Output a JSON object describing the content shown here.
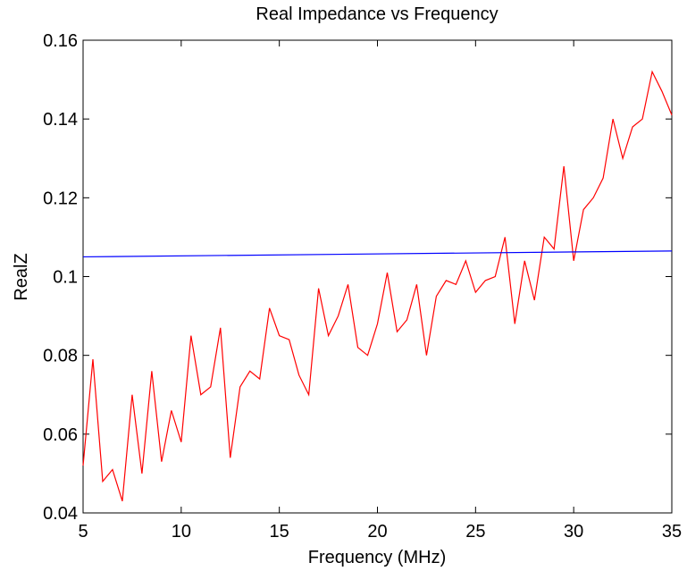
{
  "chart_data": {
    "type": "line",
    "title": "Real Impedance vs Frequency",
    "x_label": "Frequency (MHz)",
    "y_label": "RealZ",
    "xlim": [
      5,
      35
    ],
    "xticks": [
      5,
      10,
      15,
      20,
      25,
      30,
      35
    ],
    "ylim": [
      0.04,
      0.16
    ],
    "yticks": [
      0.04,
      0.06,
      0.08,
      0.1,
      0.12,
      0.14,
      0.16
    ],
    "grid": false,
    "series": [
      {
        "color": "#ff0000",
        "x": [
          5,
          5.5,
          6,
          6.5,
          7,
          7.5,
          8,
          8.5,
          9,
          9.5,
          10,
          10.5,
          11,
          11.5,
          12,
          12.5,
          13,
          13.5,
          14,
          14.5,
          15,
          15.5,
          16,
          16.5,
          17,
          17.5,
          18,
          18.5,
          19,
          19.5,
          20,
          20.5,
          21,
          21.5,
          22,
          22.5,
          23,
          23.5,
          24,
          24.5,
          25,
          25.5,
          26,
          26.5,
          27,
          27.5,
          28,
          28.5,
          29,
          29.5,
          30,
          30.5,
          31,
          31.5,
          32,
          32.5,
          33,
          33.5,
          34,
          34.5,
          35
        ],
        "values": [
          0.052,
          0.079,
          0.048,
          0.051,
          0.043,
          0.07,
          0.05,
          0.076,
          0.053,
          0.066,
          0.058,
          0.085,
          0.07,
          0.072,
          0.087,
          0.054,
          0.072,
          0.076,
          0.074,
          0.092,
          0.085,
          0.084,
          0.075,
          0.07,
          0.097,
          0.085,
          0.09,
          0.098,
          0.082,
          0.08,
          0.088,
          0.101,
          0.086,
          0.089,
          0.098,
          0.08,
          0.095,
          0.099,
          0.098,
          0.104,
          0.096,
          0.099,
          0.1,
          0.11,
          0.088,
          0.104,
          0.094,
          0.11,
          0.107,
          0.128,
          0.104,
          0.117,
          0.12,
          0.125,
          0.14,
          0.13,
          0.138,
          0.14,
          0.152,
          0.147,
          0.141
        ]
      },
      {
        "color": "#0000ff",
        "x": [
          5,
          35
        ],
        "values": [
          0.105,
          0.1065
        ]
      }
    ]
  }
}
